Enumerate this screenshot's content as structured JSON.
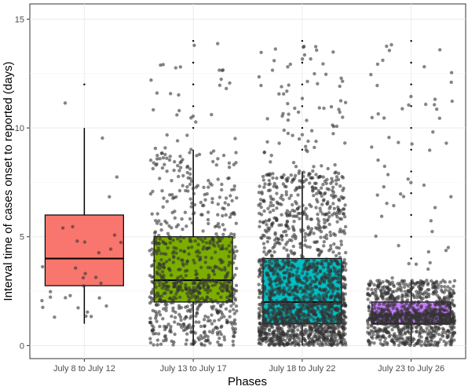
{
  "chart_data": {
    "type": "box",
    "title": "",
    "xlabel": "Phases",
    "ylabel": "Interval time of cases onset to reported (days)",
    "categories": [
      "July 8 to July 12",
      "July 13 to July 17",
      "July 18 to July 22",
      "July 23 to July 26"
    ],
    "ylim": [
      -0.6,
      15.7
    ],
    "yticks": [
      0,
      5,
      10,
      15
    ],
    "grid": true,
    "legend": "none",
    "boxes": [
      {
        "category": "July 8 to July 12",
        "color": "#F8766D",
        "min": 1,
        "q1": 2.75,
        "median": 4,
        "q3": 6,
        "max": 10,
        "outliers": [
          12
        ]
      },
      {
        "category": "July 13 to July 17",
        "color": "#7CAE00",
        "min": 0,
        "q1": 2,
        "median": 3,
        "q3": 5,
        "max": 9,
        "outliers": [
          10,
          11,
          12,
          13,
          14
        ]
      },
      {
        "category": "July 18 to July 22",
        "color": "#00BFC4",
        "min": 0,
        "q1": 1,
        "median": 2,
        "q3": 4,
        "max": 8,
        "outliers": [
          9,
          10,
          11,
          12,
          13,
          14
        ]
      },
      {
        "category": "July 23 to July 26",
        "color": "#C77CFF",
        "min": 0,
        "q1": 1,
        "median": 1,
        "q3": 2,
        "max": 3,
        "outliers": [
          4,
          5,
          6,
          7,
          8,
          9,
          10,
          11,
          12,
          13,
          14
        ]
      }
    ],
    "jitter_point_counts": [
      32,
      800,
      1800,
      1100
    ]
  }
}
